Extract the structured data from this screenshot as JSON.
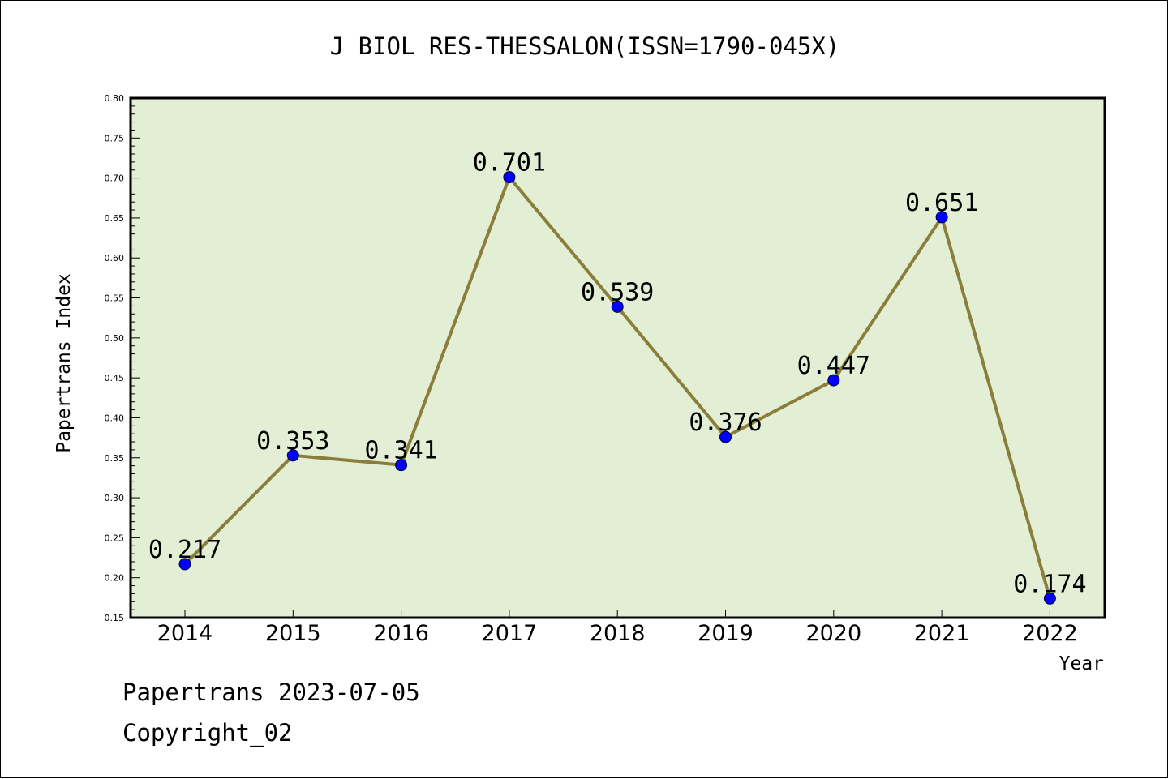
{
  "chart_data": {
    "type": "line",
    "title": "J BIOL RES-THESSALON(ISSN=1790-045X)",
    "xlabel": "Year",
    "ylabel": "Papertrans Index",
    "categories": [
      "2014",
      "2015",
      "2016",
      "2017",
      "2018",
      "2019",
      "2020",
      "2021",
      "2022"
    ],
    "series": [
      {
        "values": [
          0.217,
          0.353,
          0.341,
          0.701,
          0.539,
          0.376,
          0.447,
          0.651,
          0.174
        ],
        "labels": [
          "0.217",
          "0.353",
          "0.341",
          "0.701",
          "0.539",
          "0.376",
          "0.447",
          "0.651",
          "0.174"
        ]
      }
    ],
    "yticks": [
      "0.15",
      "0.20",
      "0.25",
      "0.30",
      "0.35",
      "0.40",
      "0.45",
      "0.50",
      "0.55",
      "0.60",
      "0.65",
      "0.70",
      "0.75",
      "0.80"
    ],
    "ylim": [
      0.15,
      0.8
    ],
    "grid": false,
    "legend": "none",
    "colors": {
      "plot_background": "#e2efd5",
      "line": "#8b7d3a",
      "marker": "#0000ff",
      "frame": "#000000"
    }
  },
  "footer": {
    "source": "Papertrans 2023-07-05",
    "copyright": "Copyright_02"
  }
}
